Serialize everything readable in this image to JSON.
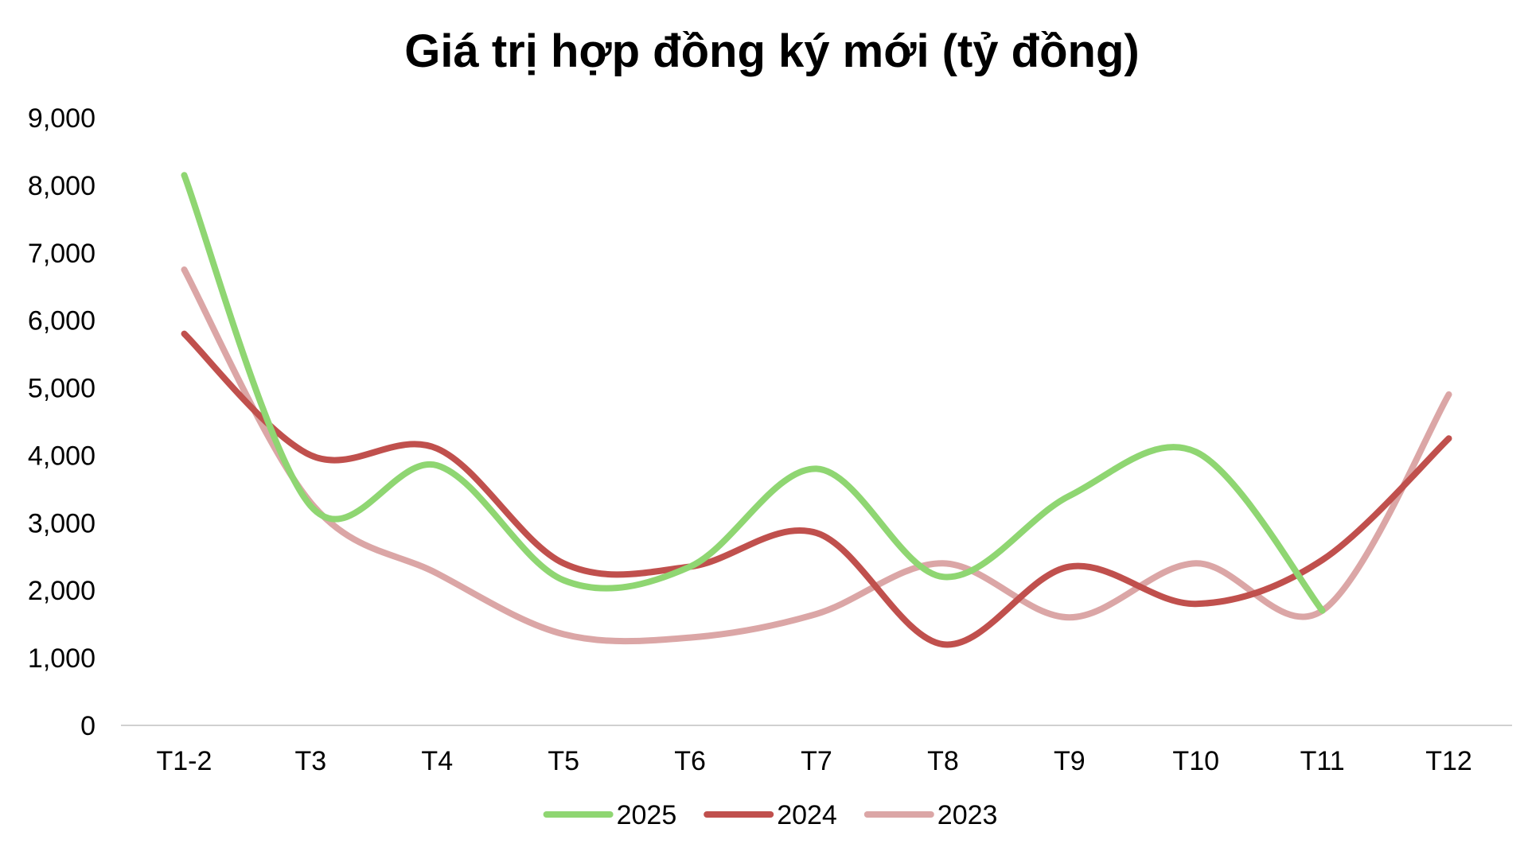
{
  "chart_data": {
    "type": "line",
    "title": "Giá trị hợp đồng ký mới (tỷ đồng)",
    "xlabel": "",
    "ylabel": "",
    "categories": [
      "T1-2",
      "T3",
      "T4",
      "T5",
      "T6",
      "T7",
      "T8",
      "T9",
      "T10",
      "T11",
      "T12"
    ],
    "ylim": [
      0,
      9000
    ],
    "yticks": [
      0,
      1000,
      2000,
      3000,
      4000,
      5000,
      6000,
      7000,
      8000,
      9000
    ],
    "ytick_labels": [
      "0",
      "1,000",
      "2,000",
      "3,000",
      "4,000",
      "5,000",
      "6,000",
      "7,000",
      "8,000",
      "9,000"
    ],
    "grid": false,
    "smooth": true,
    "legend_position": "bottom",
    "series": [
      {
        "name": "2025",
        "color": "#8fd672",
        "values": [
          8150,
          3250,
          3850,
          2150,
          2350,
          3800,
          2200,
          3400,
          4050,
          1700,
          null
        ]
      },
      {
        "name": "2024",
        "color": "#c0504d",
        "values": [
          5800,
          4000,
          4100,
          2400,
          2350,
          2850,
          1200,
          2350,
          1800,
          2450,
          4250
        ]
      },
      {
        "name": "2023",
        "color": "#dba6a6",
        "values": [
          6750,
          3300,
          2250,
          1350,
          1300,
          1650,
          2400,
          1600,
          2400,
          1700,
          4900
        ]
      }
    ]
  }
}
